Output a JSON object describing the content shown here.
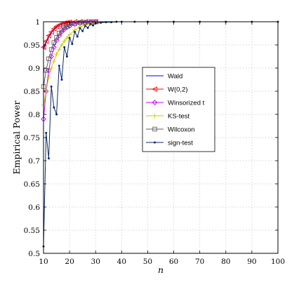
{
  "chart_data": {
    "type": "line",
    "title": "",
    "xlabel": "n",
    "ylabel": "Empirical Power",
    "xlim": [
      10,
      100
    ],
    "ylim": [
      0.5,
      1.0
    ],
    "xticks": [
      10,
      20,
      30,
      40,
      50,
      60,
      70,
      80,
      90,
      100
    ],
    "yticks": [
      0.5,
      0.55,
      0.6,
      0.65,
      0.7,
      0.75,
      0.8,
      0.85,
      0.9,
      0.95,
      1
    ],
    "grid": true,
    "legend_position": "center-right",
    "series": [
      {
        "name": "Wald",
        "color": "#0000ff",
        "marker": "none",
        "x": [
          10,
          11,
          12,
          13,
          14,
          15,
          16,
          17,
          18,
          19,
          20,
          22,
          24,
          26,
          28,
          30,
          35,
          40,
          50,
          60,
          70,
          80,
          90,
          100
        ],
        "y": [
          0.94,
          0.955,
          0.967,
          0.976,
          0.983,
          0.988,
          0.992,
          0.994,
          0.996,
          0.997,
          0.998,
          0.999,
          1.0,
          1.0,
          1.0,
          1.0,
          1.0,
          1.0,
          1.0,
          1.0,
          1.0,
          1.0,
          1.0,
          1.0
        ]
      },
      {
        "name": "W(0,2)",
        "color": "#ff0000",
        "marker": "triangle-left",
        "x": [
          10,
          11,
          12,
          13,
          14,
          15,
          16,
          17,
          18,
          19,
          20,
          22,
          24,
          26,
          28,
          30,
          35,
          40,
          50,
          60,
          70,
          80,
          90,
          100
        ],
        "y": [
          0.945,
          0.958,
          0.97,
          0.978,
          0.985,
          0.99,
          0.993,
          0.995,
          0.997,
          0.998,
          0.999,
          1.0,
          1.0,
          1.0,
          1.0,
          1.0,
          1.0,
          1.0,
          1.0,
          1.0,
          1.0,
          1.0,
          1.0,
          1.0
        ]
      },
      {
        "name": "Winsorized t",
        "color": "#cc00ff",
        "marker": "diamond",
        "x": [
          10,
          11,
          12,
          13,
          14,
          15,
          16,
          17,
          18,
          19,
          20,
          22,
          24,
          26,
          28,
          30,
          35,
          40,
          50,
          60,
          70,
          80,
          90,
          100
        ],
        "y": [
          0.79,
          0.85,
          0.895,
          0.925,
          0.945,
          0.96,
          0.97,
          0.978,
          0.984,
          0.988,
          0.991,
          0.995,
          0.997,
          0.998,
          0.999,
          1.0,
          1.0,
          1.0,
          1.0,
          1.0,
          1.0,
          1.0,
          1.0,
          1.0
        ]
      },
      {
        "name": "KS-test",
        "color": "#cccc00",
        "marker": "plus",
        "x": [
          10,
          11,
          12,
          13,
          14,
          15,
          16,
          17,
          18,
          19,
          20,
          22,
          24,
          26,
          28,
          30,
          35,
          40,
          50,
          60,
          70,
          80,
          90,
          100
        ],
        "y": [
          0.82,
          0.85,
          0.88,
          0.9,
          0.915,
          0.93,
          0.94,
          0.95,
          0.958,
          0.965,
          0.972,
          0.982,
          0.989,
          0.993,
          0.996,
          0.998,
          0.999,
          1.0,
          1.0,
          1.0,
          1.0,
          1.0,
          1.0,
          1.0
        ]
      },
      {
        "name": "Wilcoxon",
        "color": "#606060",
        "marker": "square",
        "x": [
          10,
          11,
          12,
          13,
          14,
          15,
          16,
          17,
          18,
          19,
          20,
          22,
          24,
          26,
          28,
          30,
          35,
          40,
          50,
          60,
          70,
          80,
          90,
          100
        ],
        "y": [
          0.86,
          0.895,
          0.92,
          0.94,
          0.955,
          0.966,
          0.975,
          0.982,
          0.987,
          0.99,
          0.993,
          0.996,
          0.998,
          0.999,
          1.0,
          1.0,
          1.0,
          1.0,
          1.0,
          1.0,
          1.0,
          1.0,
          1.0,
          1.0
        ]
      },
      {
        "name": "sign-test",
        "color": "#0a2a6a",
        "marker": "dot",
        "x": [
          10,
          11,
          12,
          13,
          14,
          15,
          16,
          17,
          18,
          19,
          20,
          21,
          22,
          23,
          24,
          25,
          26,
          27,
          28,
          29,
          30,
          32,
          34,
          36,
          38,
          40,
          45,
          50,
          60,
          70,
          80,
          90,
          100
        ],
        "y": [
          0.515,
          0.76,
          0.705,
          0.86,
          0.815,
          0.8,
          0.905,
          0.875,
          0.945,
          0.925,
          0.965,
          0.952,
          0.978,
          0.968,
          0.986,
          0.98,
          0.991,
          0.987,
          0.995,
          0.992,
          0.997,
          0.998,
          0.999,
          0.999,
          1.0,
          1.0,
          1.0,
          1.0,
          1.0,
          1.0,
          1.0,
          1.0,
          1.0
        ]
      }
    ]
  }
}
